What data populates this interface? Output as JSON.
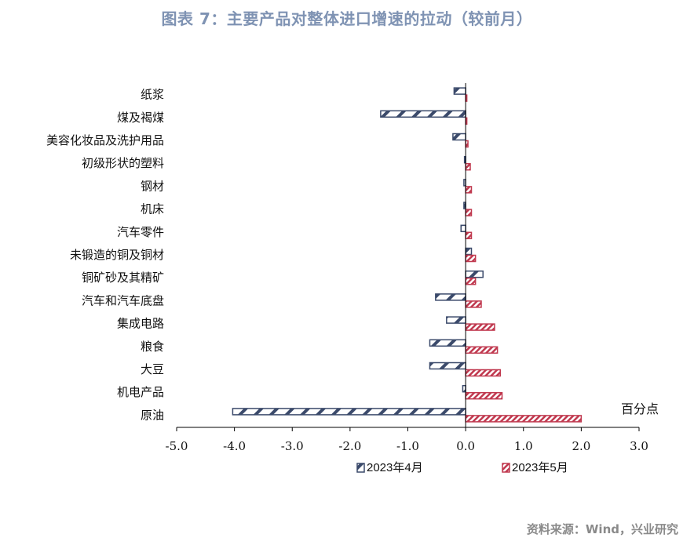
{
  "title": "图表 7：主要产品对整体进口增速的拉动（较前月）",
  "source": "资料来源：Wind，兴业研究",
  "colors": {
    "title": "#7f93b3",
    "apr": "#3b4a6b",
    "may": "#c0394f",
    "axis": "#000000"
  },
  "chart_data": {
    "type": "bar",
    "orientation": "horizontal",
    "title": "图表 7：主要产品对整体进口增速的拉动（较前月）",
    "unit_label": "百分点",
    "categories": [
      "纸浆",
      "煤及褐煤",
      "美容化妆品及洗护用品",
      "初级形状的塑料",
      "钢材",
      "机床",
      "汽车零件",
      "未锻造的铜及铜材",
      "铜矿砂及其精矿",
      "汽车和汽车底盘",
      "集成电路",
      "粮食",
      "大豆",
      "机电产品",
      "原油"
    ],
    "series": [
      {
        "name": "2023年4月",
        "values": [
          -0.2,
          -1.47,
          -0.22,
          -0.02,
          -0.03,
          -0.03,
          -0.08,
          0.1,
          0.3,
          -0.52,
          -0.33,
          -0.62,
          -0.62,
          -0.05,
          -4.03
        ]
      },
      {
        "name": "2023年5月",
        "values": [
          0.02,
          0.02,
          0.04,
          0.08,
          0.1,
          0.1,
          0.1,
          0.17,
          0.17,
          0.27,
          0.5,
          0.55,
          0.6,
          0.63,
          2.0
        ]
      }
    ],
    "xlim": [
      -5.0,
      3.0
    ],
    "xticks": [
      -5.0,
      -4.0,
      -3.0,
      -2.0,
      -1.0,
      0.0,
      1.0,
      2.0,
      3.0
    ],
    "xtick_labels": [
      "-5.0",
      "-4.0",
      "-3.0",
      "-2.0",
      "-1.0",
      "0.0",
      "1.0",
      "2.0",
      "3.0"
    ],
    "grid": false,
    "legend_position": "bottom"
  }
}
